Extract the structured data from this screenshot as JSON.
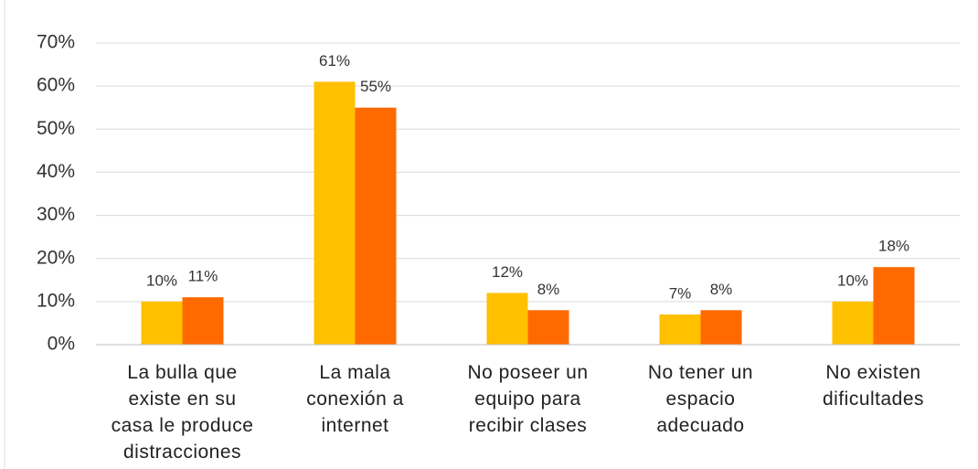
{
  "chart_data": {
    "type": "bar",
    "categories": [
      "La bulla que existe en su casa le produce distracciones",
      "La mala conexión a internet",
      "No poseer un equipo para recibir clases",
      "No tener un espacio adecuado",
      "No existen dificultades"
    ],
    "series": [
      {
        "color": "#FFC000",
        "values": [
          10,
          61,
          12,
          7,
          10
        ],
        "value_labels": [
          "10%",
          "61%",
          "12%",
          "7%",
          "10%"
        ]
      },
      {
        "color": "#FF6A00",
        "values": [
          11,
          55,
          8,
          8,
          18
        ],
        "value_labels": [
          "11%",
          "55%",
          "8%",
          "8%",
          "18%"
        ]
      }
    ],
    "ylim": [
      0,
      70
    ],
    "yticks": [
      {
        "value": 0,
        "label": "0%"
      },
      {
        "value": 10,
        "label": "10%"
      },
      {
        "value": 20,
        "label": "20%"
      },
      {
        "value": 30,
        "label": "30%"
      },
      {
        "value": 40,
        "label": "40%"
      },
      {
        "value": 50,
        "label": "50%"
      },
      {
        "value": 60,
        "label": "60%"
      },
      {
        "value": 70,
        "label": "70%"
      }
    ],
    "grid": true
  }
}
